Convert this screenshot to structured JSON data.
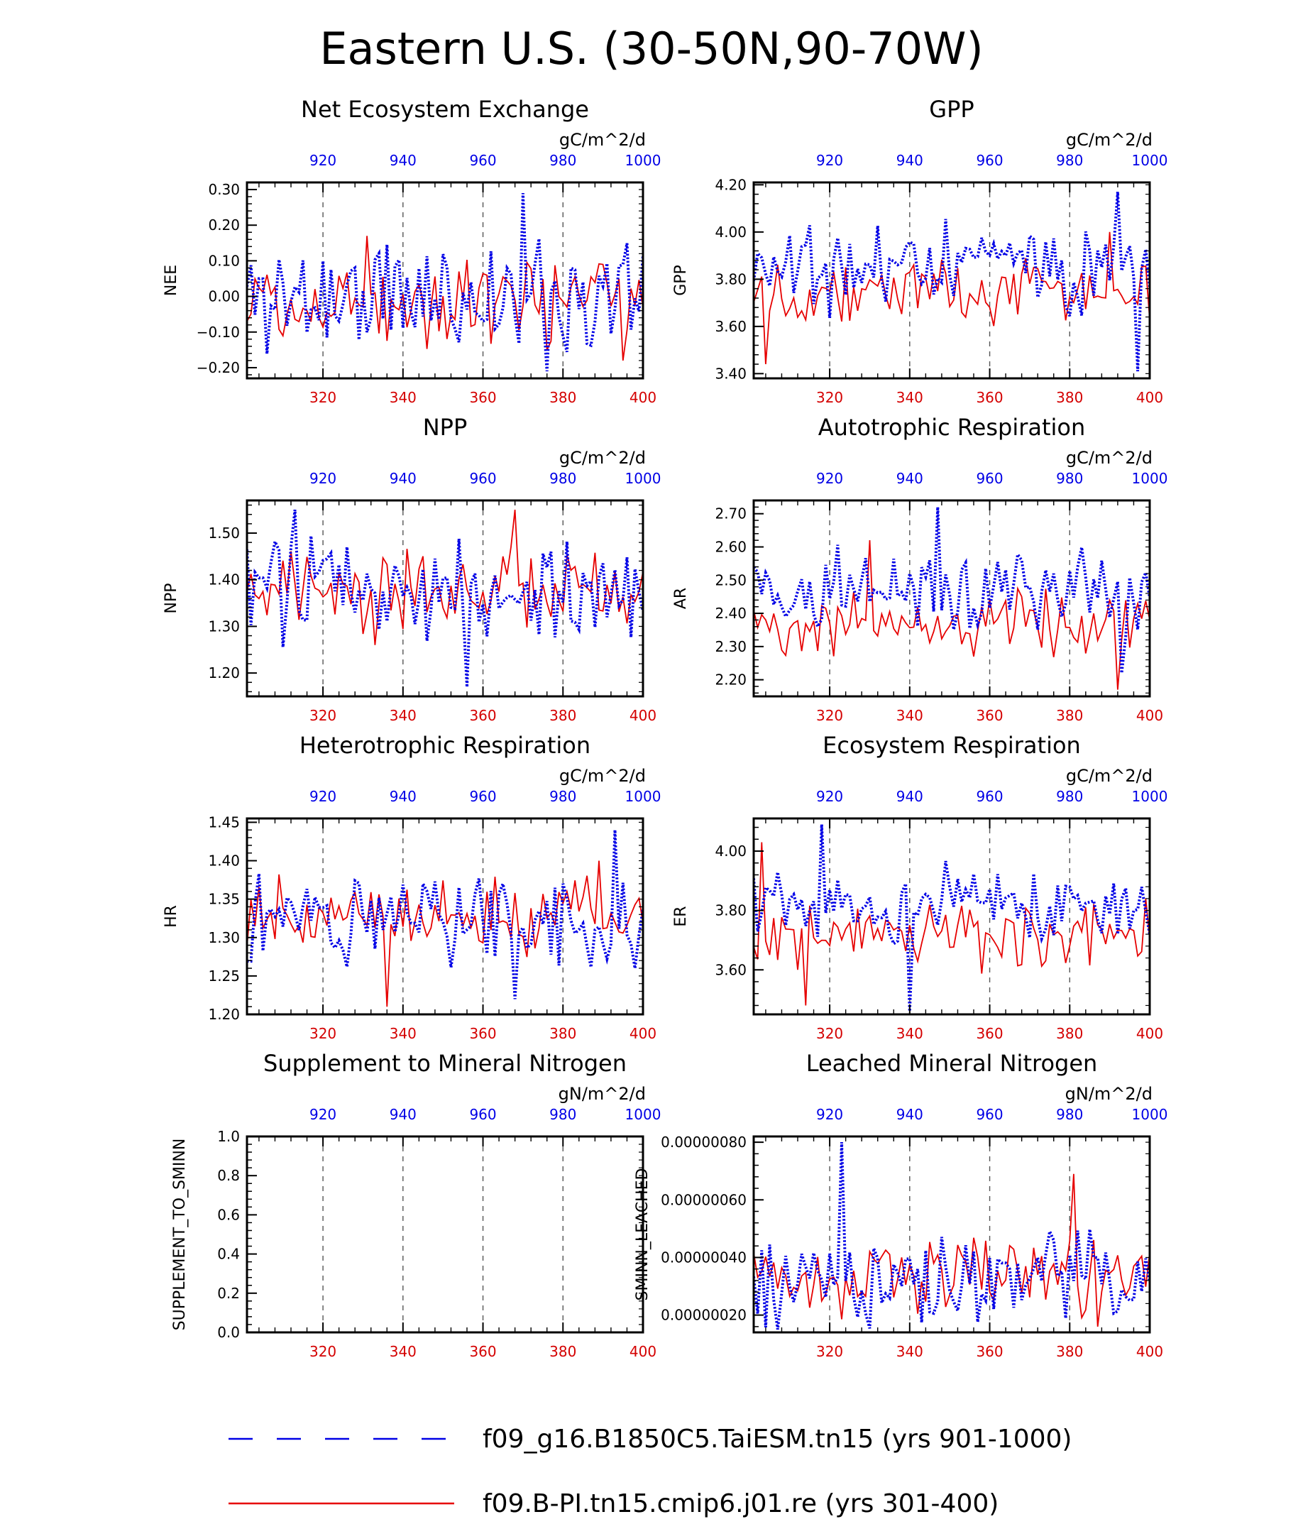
{
  "title": "Eastern U.S. (30-50N,90-70W)",
  "colors": {
    "blue": "#0000e6",
    "red": "#e60000",
    "frame": "#000000",
    "grid": "#555555"
  },
  "legend": [
    {
      "label": "f09_g16.B1850C5.TaiESM.tn15 (yrs 901-1000)",
      "color": "#0000e6",
      "style": "dashed"
    },
    {
      "label": "f09.B-PI.tn15.cmip6.j01.re (yrs 301-400)",
      "color": "#e60000",
      "style": "solid"
    }
  ],
  "chart_data": [
    {
      "type": "line",
      "title": "Net Ecosystem Exchange",
      "ylabel": "NEE",
      "units": "gC/m^2/d",
      "ylim": [
        -0.23,
        0.32
      ],
      "yticks": [
        -0.2,
        -0.1,
        0.0,
        0.1,
        0.2,
        0.3
      ],
      "ytick_labels": [
        "−0.20",
        "−0.10",
        "0.00",
        "0.10",
        "0.20",
        "0.30"
      ],
      "x_bottom": {
        "range": [
          301,
          400
        ],
        "ticks": [
          320,
          340,
          360,
          380,
          400
        ]
      },
      "x_top": {
        "range": [
          901,
          1000
        ],
        "ticks": [
          920,
          940,
          960,
          980,
          1000
        ]
      },
      "series": [
        {
          "name": "f09_g16.B1850C5.TaiESM.tn15 (yrs 901-1000)",
          "color": "blue",
          "style": "dotted",
          "base": 0.0,
          "amp": 0.13,
          "seed": 11,
          "y_max": 0.29,
          "y_min": -0.21
        },
        {
          "name": "f09.B-PI.tn15.cmip6.j01.re (yrs 301-400)",
          "color": "red",
          "style": "solid",
          "base": 0.0,
          "amp": 0.09,
          "seed": 12,
          "y_max": 0.17,
          "y_min": -0.18
        }
      ]
    },
    {
      "type": "line",
      "title": "GPP",
      "ylabel": "GPP",
      "units": "gC/m^2/d",
      "ylim": [
        3.38,
        4.21
      ],
      "yticks": [
        3.4,
        3.6,
        3.8,
        4.0,
        4.2
      ],
      "ytick_labels": [
        "3.40",
        "3.60",
        "3.80",
        "4.00",
        "4.20"
      ],
      "x_bottom": {
        "range": [
          301,
          400
        ],
        "ticks": [
          320,
          340,
          360,
          380,
          400
        ]
      },
      "x_top": {
        "range": [
          901,
          1000
        ],
        "ticks": [
          920,
          940,
          960,
          980,
          1000
        ]
      },
      "series": [
        {
          "name": "f09_g16.B1850C5.TaiESM.tn15 (yrs 901-1000)",
          "color": "blue",
          "style": "dotted",
          "base": 3.86,
          "amp": 0.14,
          "seed": 21,
          "y_max": 4.17,
          "y_min": 3.41
        },
        {
          "name": "f09.B-PI.tn15.cmip6.j01.re (yrs 301-400)",
          "color": "red",
          "style": "solid",
          "base": 3.76,
          "amp": 0.1,
          "seed": 22,
          "y_max": 4.0,
          "y_min": 3.44
        }
      ]
    },
    {
      "type": "line",
      "title": "NPP",
      "ylabel": "NPP",
      "units": "gC/m^2/d",
      "ylim": [
        1.15,
        1.57
      ],
      "yticks": [
        1.2,
        1.3,
        1.4,
        1.5
      ],
      "ytick_labels": [
        "1.20",
        "1.30",
        "1.40",
        "1.50"
      ],
      "x_bottom": {
        "range": [
          301,
          400
        ],
        "ticks": [
          320,
          340,
          360,
          380,
          400
        ]
      },
      "x_top": {
        "range": [
          901,
          1000
        ],
        "ticks": [
          920,
          940,
          960,
          980,
          1000
        ]
      },
      "series": [
        {
          "name": "f09_g16.B1850C5.TaiESM.tn15 (yrs 901-1000)",
          "color": "blue",
          "style": "dotted",
          "base": 1.38,
          "amp": 0.08,
          "seed": 31,
          "y_max": 1.55,
          "y_min": 1.17
        },
        {
          "name": "f09.B-PI.tn15.cmip6.j01.re (yrs 301-400)",
          "color": "red",
          "style": "solid",
          "base": 1.38,
          "amp": 0.06,
          "seed": 32,
          "y_max": 1.55,
          "y_min": 1.26
        }
      ]
    },
    {
      "type": "line",
      "title": "Autotrophic Respiration",
      "ylabel": "AR",
      "units": "gC/m^2/d",
      "ylim": [
        2.15,
        2.74
      ],
      "yticks": [
        2.2,
        2.3,
        2.4,
        2.5,
        2.6,
        2.7
      ],
      "ytick_labels": [
        "2.20",
        "2.30",
        "2.40",
        "2.50",
        "2.60",
        "2.70"
      ],
      "x_bottom": {
        "range": [
          301,
          400
        ],
        "ticks": [
          320,
          340,
          360,
          380,
          400
        ]
      },
      "x_top": {
        "range": [
          901,
          1000
        ],
        "ticks": [
          920,
          940,
          960,
          980,
          1000
        ]
      },
      "series": [
        {
          "name": "f09_g16.B1850C5.TaiESM.tn15 (yrs 901-1000)",
          "color": "blue",
          "style": "dotted",
          "base": 2.47,
          "amp": 0.1,
          "seed": 41,
          "y_max": 2.72,
          "y_min": 2.22
        },
        {
          "name": "f09.B-PI.tn15.cmip6.j01.re (yrs 301-400)",
          "color": "red",
          "style": "solid",
          "base": 2.37,
          "amp": 0.07,
          "seed": 42,
          "y_max": 2.62,
          "y_min": 2.17
        }
      ]
    },
    {
      "type": "line",
      "title": "Heterotrophic Respiration",
      "ylabel": "HR",
      "units": "gC/m^2/d",
      "ylim": [
        1.2,
        1.455
      ],
      "yticks": [
        1.2,
        1.25,
        1.3,
        1.35,
        1.4,
        1.45
      ],
      "ytick_labels": [
        "1.20",
        "1.25",
        "1.30",
        "1.35",
        "1.40",
        "1.45"
      ],
      "x_bottom": {
        "range": [
          301,
          400
        ],
        "ticks": [
          320,
          340,
          360,
          380,
          400
        ]
      },
      "x_top": {
        "range": [
          901,
          1000
        ],
        "ticks": [
          920,
          940,
          960,
          980,
          1000
        ]
      },
      "series": [
        {
          "name": "f09_g16.B1850C5.TaiESM.tn15 (yrs 901-1000)",
          "color": "blue",
          "style": "dotted",
          "base": 1.33,
          "amp": 0.05,
          "seed": 51,
          "y_max": 1.44,
          "y_min": 1.22
        },
        {
          "name": "f09.B-PI.tn15.cmip6.j01.re (yrs 301-400)",
          "color": "red",
          "style": "solid",
          "base": 1.33,
          "amp": 0.035,
          "seed": 52,
          "y_max": 1.4,
          "y_min": 1.21
        }
      ]
    },
    {
      "type": "line",
      "title": "Ecosystem Respiration",
      "ylabel": "ER",
      "units": "gC/m^2/d",
      "ylim": [
        3.45,
        4.11
      ],
      "yticks": [
        3.6,
        3.8,
        4.0
      ],
      "ytick_labels": [
        "3.60",
        "3.80",
        "4.00"
      ],
      "x_bottom": {
        "range": [
          301,
          400
        ],
        "ticks": [
          320,
          340,
          360,
          380,
          400
        ]
      },
      "x_top": {
        "range": [
          901,
          1000
        ],
        "ticks": [
          920,
          940,
          960,
          980,
          1000
        ]
      },
      "series": [
        {
          "name": "f09_g16.B1850C5.TaiESM.tn15 (yrs 901-1000)",
          "color": "blue",
          "style": "dotted",
          "base": 3.81,
          "amp": 0.11,
          "seed": 61,
          "y_max": 4.09,
          "y_min": 3.46
        },
        {
          "name": "f09.B-PI.tn15.cmip6.j01.re (yrs 301-400)",
          "color": "red",
          "style": "solid",
          "base": 3.72,
          "amp": 0.08,
          "seed": 62,
          "y_max": 4.03,
          "y_min": 3.48
        }
      ]
    },
    {
      "type": "line",
      "title": "Supplement to Mineral Nitrogen",
      "ylabel": "SUPPLEMENT_TO_SMINN",
      "units": "gN/m^2/d",
      "ylim": [
        0.0,
        1.0
      ],
      "yticks": [
        0.0,
        0.2,
        0.4,
        0.6,
        0.8,
        1.0
      ],
      "ytick_labels": [
        "0.0",
        "0.2",
        "0.4",
        "0.6",
        "0.8",
        "1.0"
      ],
      "x_bottom": {
        "range": [
          301,
          400
        ],
        "ticks": [
          320,
          340,
          360,
          380,
          400
        ]
      },
      "x_top": {
        "range": [
          901,
          1000
        ],
        "ticks": [
          920,
          940,
          960,
          980,
          1000
        ]
      },
      "series": []
    },
    {
      "type": "line",
      "title": "Leached Mineral Nitrogen",
      "ylabel": "SMINN_LEACHED",
      "units": "gN/m^2/d",
      "ylim": [
        1.4e-07,
        8.2e-07
      ],
      "yticks": [
        2e-07,
        4e-07,
        6e-07,
        8e-07
      ],
      "ytick_labels": [
        "0.00000020",
        "0.00000040",
        "0.00000060",
        "0.00000080"
      ],
      "x_bottom": {
        "range": [
          301,
          400
        ],
        "ticks": [
          320,
          340,
          360,
          380,
          400
        ]
      },
      "x_top": {
        "range": [
          901,
          1000
        ],
        "ticks": [
          920,
          940,
          960,
          980,
          1000
        ]
      },
      "series": [
        {
          "name": "f09_g16.B1850C5.TaiESM.tn15 (yrs 901-1000)",
          "color": "blue",
          "style": "dotted",
          "base": 3.3e-07,
          "amp": 1.2e-07,
          "seed": 81,
          "y_max": 8e-07,
          "y_min": 1.5e-07
        },
        {
          "name": "f09.B-PI.tn15.cmip6.j01.re (yrs 301-400)",
          "color": "red",
          "style": "solid",
          "base": 3.3e-07,
          "amp": 1e-07,
          "seed": 82,
          "y_max": 6.9e-07,
          "y_min": 1.6e-07
        }
      ]
    }
  ]
}
